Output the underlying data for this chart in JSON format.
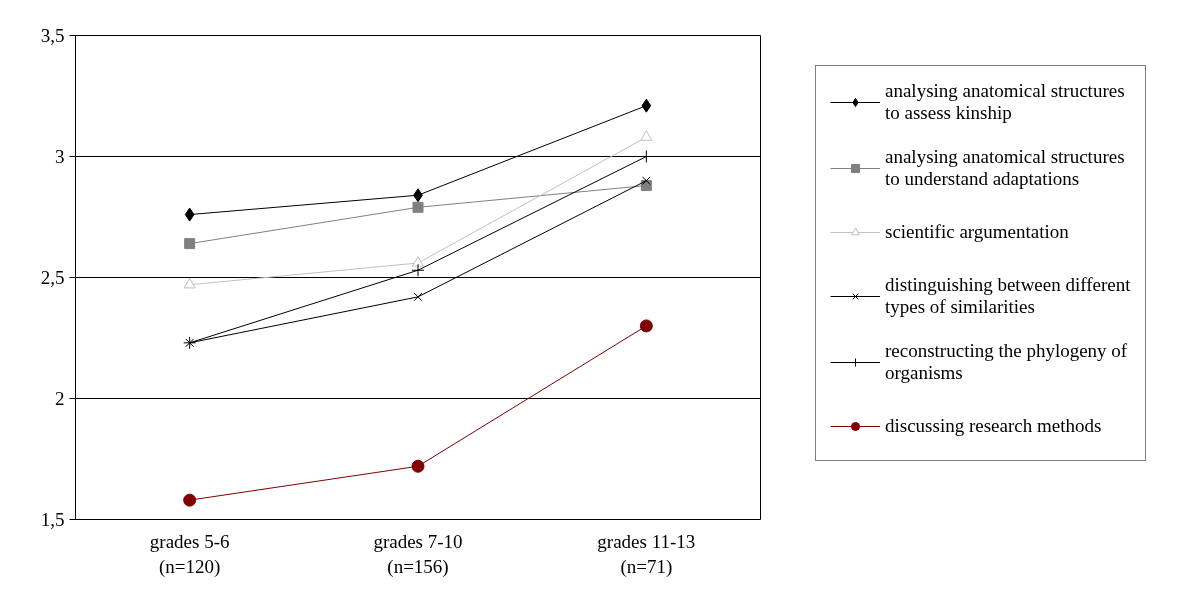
{
  "chart_data": {
    "type": "line",
    "categories": [
      "grades 5-6\n(n=120)",
      "grades 7-10\n(n=156)",
      "grades 11-13\n(n=71)"
    ],
    "ylim": [
      1.5,
      3.5
    ],
    "yticks": [
      {
        "value": 1.5,
        "label": "1,5"
      },
      {
        "value": 2,
        "label": "2"
      },
      {
        "value": 2.5,
        "label": "2,5"
      },
      {
        "value": 3,
        "label": "3"
      },
      {
        "value": 3.5,
        "label": "3,5"
      }
    ],
    "grid": "y",
    "legend": "right",
    "series": [
      {
        "name": "analysing anatomical structures to assess kinship",
        "color": "#000000",
        "marker": "diamond",
        "values": [
          2.76,
          2.84,
          3.21
        ]
      },
      {
        "name": "analysing anatomical structures to understand adaptations",
        "color": "#808080",
        "marker": "square",
        "values": [
          2.64,
          2.79,
          2.88
        ]
      },
      {
        "name": "scientific argumentation",
        "color": "#c0c0c0",
        "marker": "triangle",
        "values": [
          2.47,
          2.56,
          3.08
        ]
      },
      {
        "name": "distinguishing between different types of similarities",
        "color": "#000000",
        "marker": "cross",
        "values": [
          2.23,
          2.42,
          2.9
        ]
      },
      {
        "name": "reconstructing the phylogeny of organisms",
        "color": "#000000",
        "marker": "plus",
        "values": [
          2.23,
          2.53,
          3.0
        ]
      },
      {
        "name": "discussing research methods",
        "color": "#800000",
        "marker": "circle",
        "values": [
          1.58,
          1.72,
          2.3
        ]
      }
    ]
  }
}
